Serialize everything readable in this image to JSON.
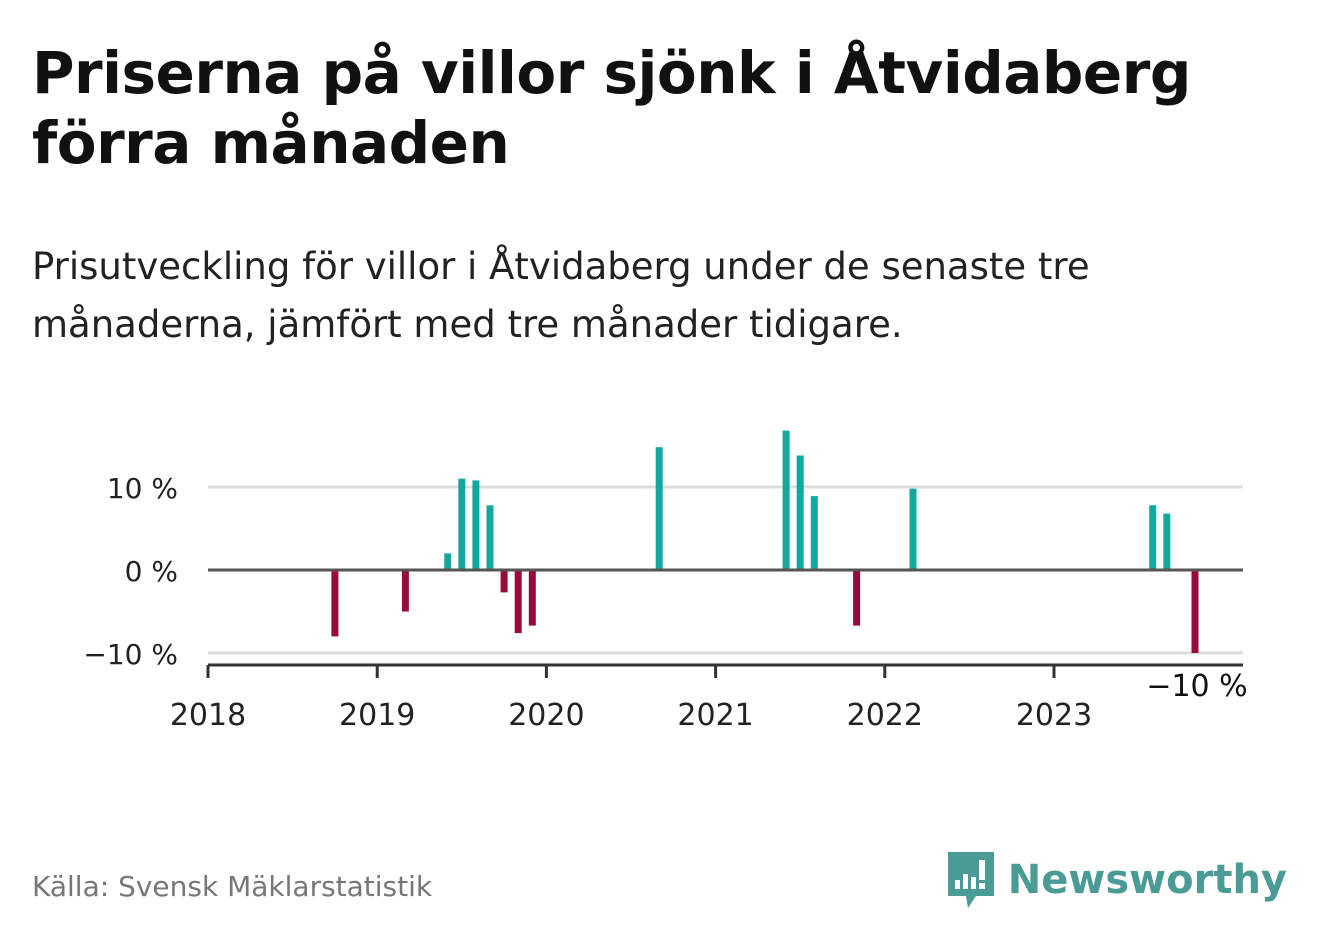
{
  "title": "Priserna på villor sjönk i Åtvidaberg förra månaden",
  "subtitle": "Prisutveckling för villor i Åtvidaberg under de senaste tre månaderna, jämfört med tre månader tidigare.",
  "source": "Källa: Svensk Mäklarstatistik",
  "brand": {
    "name": "Newsworthy",
    "icon": "newsworthy-logo-icon"
  },
  "colors": {
    "positive": "#13a89e",
    "negative": "#990a3c",
    "brand": "#4a9b96"
  },
  "chart_data": {
    "type": "bar",
    "unit": "%",
    "x_ticks": [
      "2018",
      "2019",
      "2020",
      "2021",
      "2022",
      "2023"
    ],
    "y_ticks": [
      "10 %",
      "0 %",
      "−10 %"
    ],
    "ylim": [
      -11,
      20
    ],
    "grid": true,
    "last_value_label": "−10 %",
    "bars": [
      {
        "date": "2018-10",
        "value": -8
      },
      {
        "date": "2019-03",
        "value": -5
      },
      {
        "date": "2019-06",
        "value": 2
      },
      {
        "date": "2019-07",
        "value": 11
      },
      {
        "date": "2019-08",
        "value": 10.8
      },
      {
        "date": "2019-09",
        "value": 7.8
      },
      {
        "date": "2019-10",
        "value": -2.7
      },
      {
        "date": "2019-11",
        "value": -7.6
      },
      {
        "date": "2019-12",
        "value": -6.7
      },
      {
        "date": "2020-09",
        "value": 14.8
      },
      {
        "date": "2021-06",
        "value": 16.8
      },
      {
        "date": "2021-07",
        "value": 13.8
      },
      {
        "date": "2021-08",
        "value": 8.9
      },
      {
        "date": "2021-11",
        "value": -6.7
      },
      {
        "date": "2022-03",
        "value": 9.8
      },
      {
        "date": "2023-08",
        "value": 7.8
      },
      {
        "date": "2023-09",
        "value": 6.8
      },
      {
        "date": "2023-11",
        "value": -10
      }
    ]
  }
}
